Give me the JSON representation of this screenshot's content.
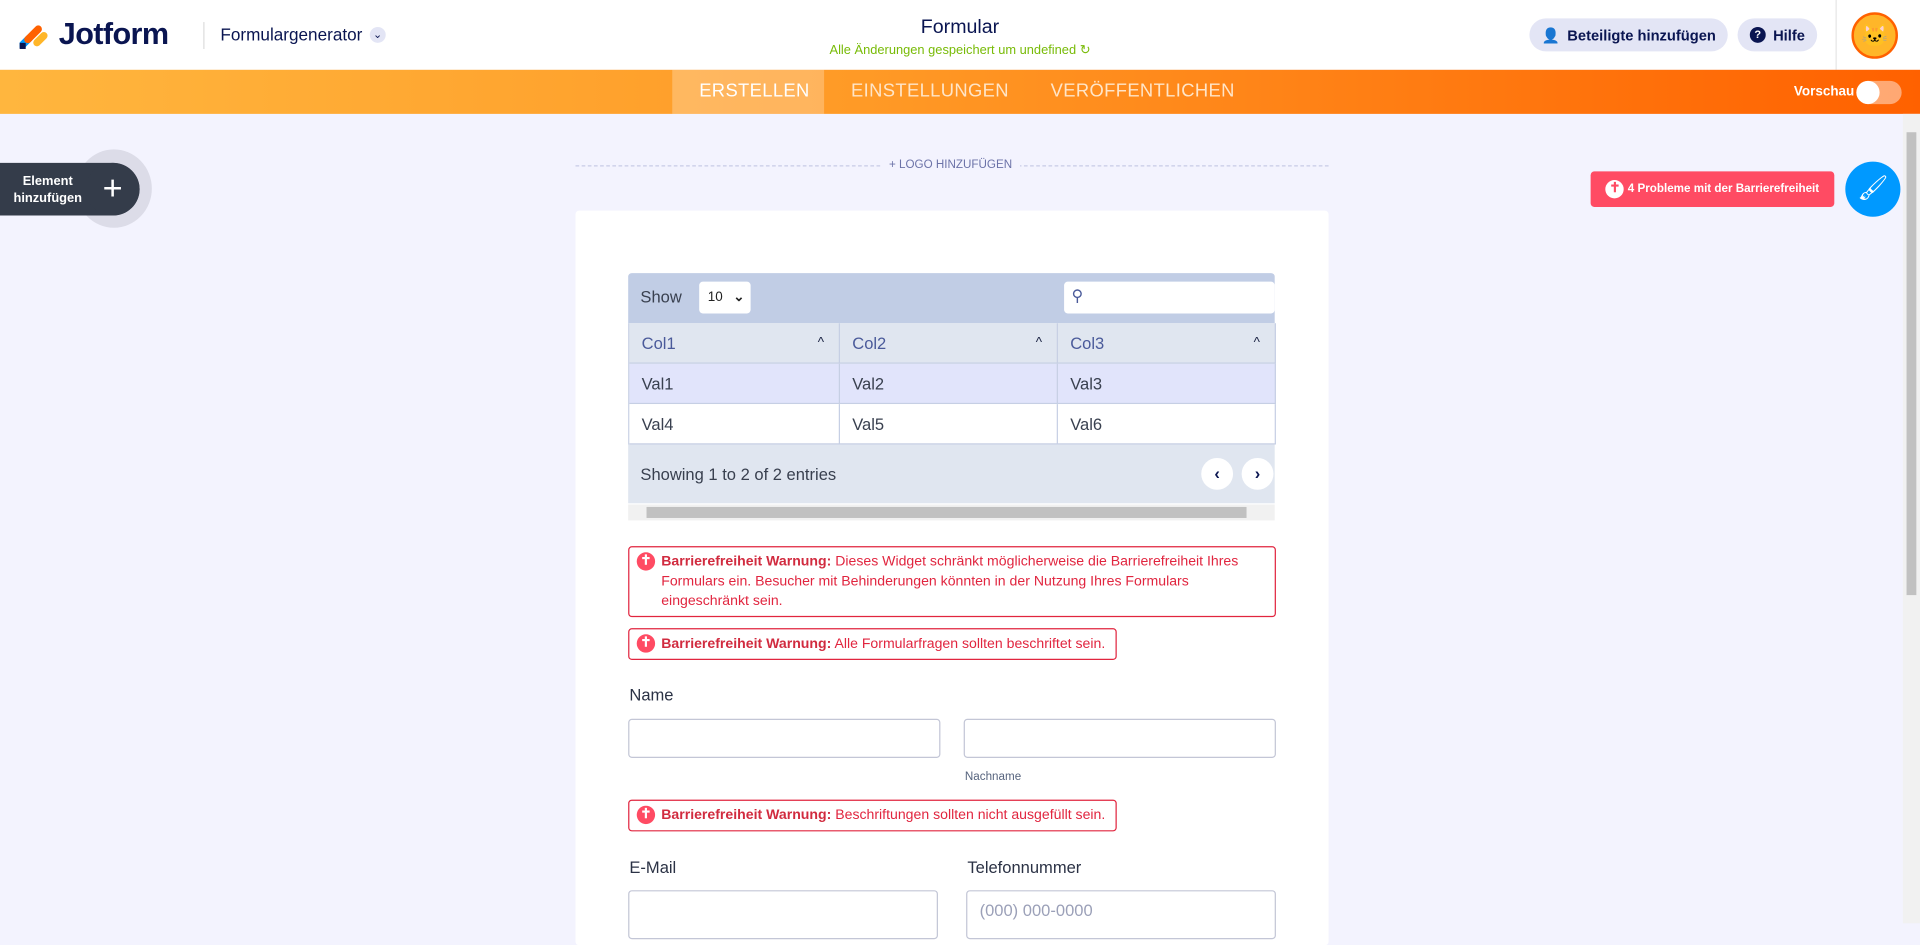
{
  "header": {
    "brand": "Jotform",
    "builder_menu": "Formulargenerator",
    "form_title": "Formular",
    "save_status": "Alle Änderungen gespeichert um undefined",
    "add_participants": "Beteiligte hinzufügen",
    "help": "Hilfe"
  },
  "nav": {
    "tabs": [
      "ERSTELLEN",
      "EINSTELLUNGEN",
      "VERÖFFENTLICHEN"
    ],
    "active_tab": "ERSTELLEN",
    "preview_label": "Vorschau",
    "preview_on": false
  },
  "left": {
    "add_element_line1": "Element",
    "add_element_line2": "hinzufügen"
  },
  "canvas": {
    "add_logo": "+ LOGO HINZUFÜGEN",
    "accessibility_issues": "4 Probleme mit der Barrierefreiheit"
  },
  "table": {
    "show_label": "Show",
    "page_size": "10",
    "search_placeholder": "",
    "columns": [
      "Col1",
      "Col2",
      "Col3"
    ],
    "rows": [
      [
        "Val1",
        "Val2",
        "Val3"
      ],
      [
        "Val4",
        "Val5",
        "Val6"
      ]
    ],
    "info": "Showing 1 to 2 of 2 entries"
  },
  "warnings": [
    {
      "title": "Barrierefreiheit Warnung:",
      "text": "Dieses Widget schränkt möglicherweise die Barrierefreiheit Ihres Formulars ein. Besucher mit Behinderungen könnten in der Nutzung Ihres Formulars eingeschränkt sein."
    },
    {
      "title": "Barrierefreiheit Warnung:",
      "text": "Alle Formularfragen sollten beschriftet sein."
    },
    {
      "title": "Barrierefreiheit Warnung:",
      "text": "Beschriftungen sollten nicht ausgefüllt sein."
    }
  ],
  "fields": {
    "name_label": "Name",
    "first_name_value": "",
    "last_name_value": "",
    "last_name_sublabel": "Nachname",
    "email_label": "E-Mail",
    "email_value": "",
    "phone_label": "Telefonnummer",
    "phone_placeholder": "(000) 000-0000"
  },
  "colors": {
    "brand_orange": "#ff6100",
    "warning_red": "#e1253f",
    "accessibility_button": "#ff4b63",
    "wand_blue": "#0099ff"
  }
}
